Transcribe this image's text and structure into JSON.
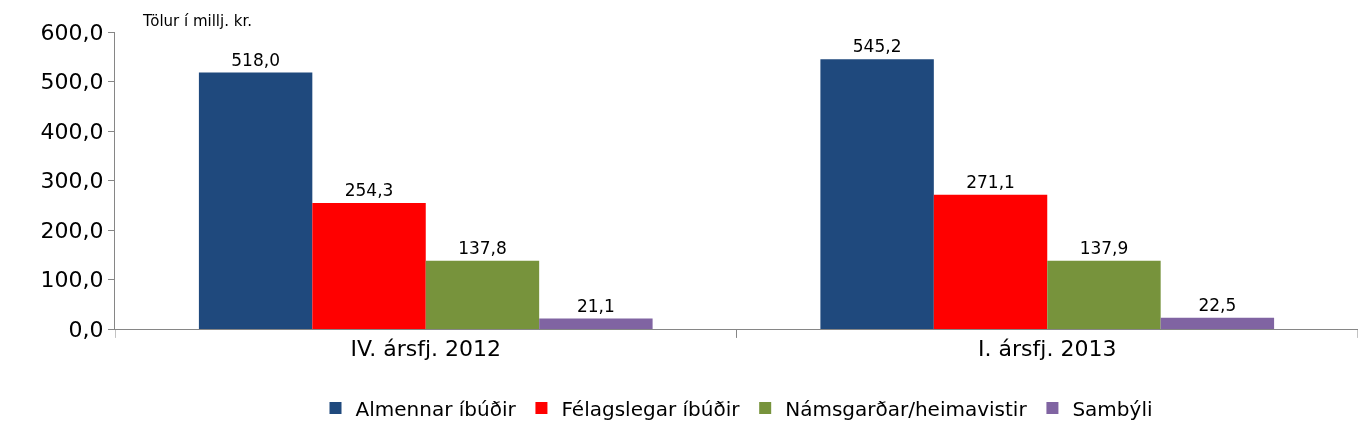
{
  "chart_data": {
    "type": "bar",
    "categories": [
      "IV. ársfj. 2012",
      "I. ársfj. 2013"
    ],
    "series": [
      {
        "name": "Almennar íbúðir",
        "color": "#1f497d",
        "values": [
          518.0,
          545.2
        ],
        "value_labels": [
          "518,0",
          "545,2"
        ]
      },
      {
        "name": "Félagslegar íbúðir",
        "color": "#ff0000",
        "values": [
          254.3,
          271.1
        ],
        "value_labels": [
          "254,3",
          "271,1"
        ]
      },
      {
        "name": "Námsgarðar/heimavistir",
        "color": "#77933c",
        "values": [
          137.8,
          137.9
        ],
        "value_labels": [
          "137,8",
          "137,9"
        ]
      },
      {
        "name": "Sambýli",
        "color": "#8064a2",
        "values": [
          21.1,
          22.5
        ],
        "value_labels": [
          "21,1",
          "22,5"
        ]
      }
    ],
    "ylim": [
      0,
      600
    ],
    "yticks": [
      {
        "value": 0,
        "label": "0,0"
      },
      {
        "value": 100,
        "label": "100,0"
      },
      {
        "value": 200,
        "label": "200,0"
      },
      {
        "value": 300,
        "label": "300,0"
      },
      {
        "value": 400,
        "label": "400,0"
      },
      {
        "value": 500,
        "label": "500,0"
      },
      {
        "value": 600,
        "label": "600,0"
      }
    ],
    "annotations": [
      "Tölur í millj. kr."
    ],
    "grid": false,
    "legend": "bottom"
  }
}
